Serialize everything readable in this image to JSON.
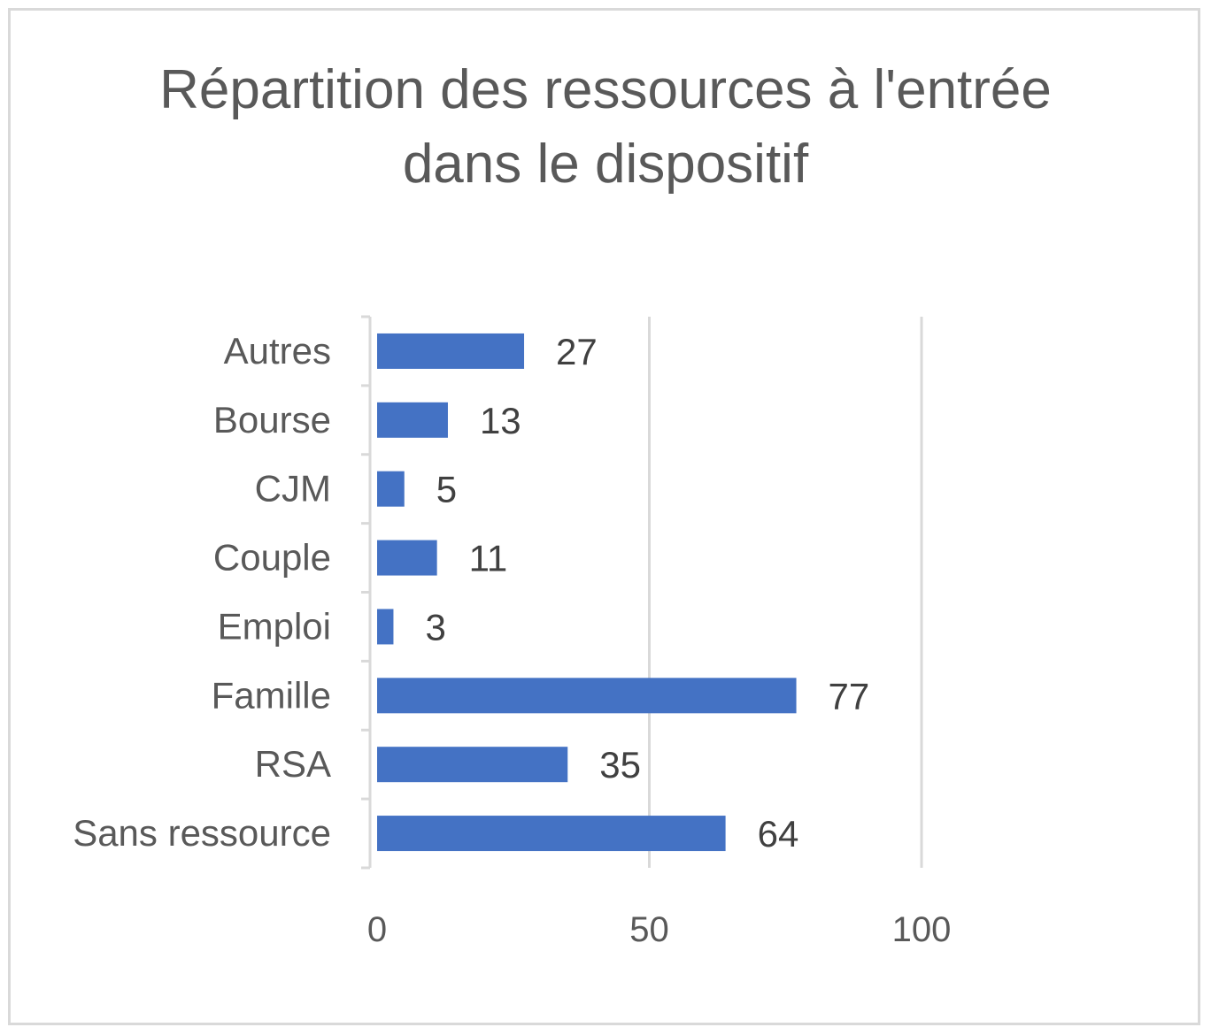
{
  "chart_data": {
    "type": "bar",
    "orientation": "horizontal",
    "title": "Répartition des ressources à l'entrée dans le dispositif",
    "categories": [
      "Autres",
      "Bourse",
      "CJM",
      "Couple",
      "Emploi",
      "Famille",
      "RSA",
      "Sans ressource"
    ],
    "values": [
      27,
      13,
      5,
      11,
      3,
      77,
      35,
      64
    ],
    "xlim": [
      0,
      100
    ],
    "xticks": [
      "0",
      "50",
      "100"
    ],
    "xlabel": "",
    "ylabel": "",
    "grid": "vertical",
    "legend": "none",
    "colors": {
      "bar": "#4472c4",
      "grid": "#d9d9d9",
      "text": "#595959",
      "data_label": "#404040"
    }
  }
}
